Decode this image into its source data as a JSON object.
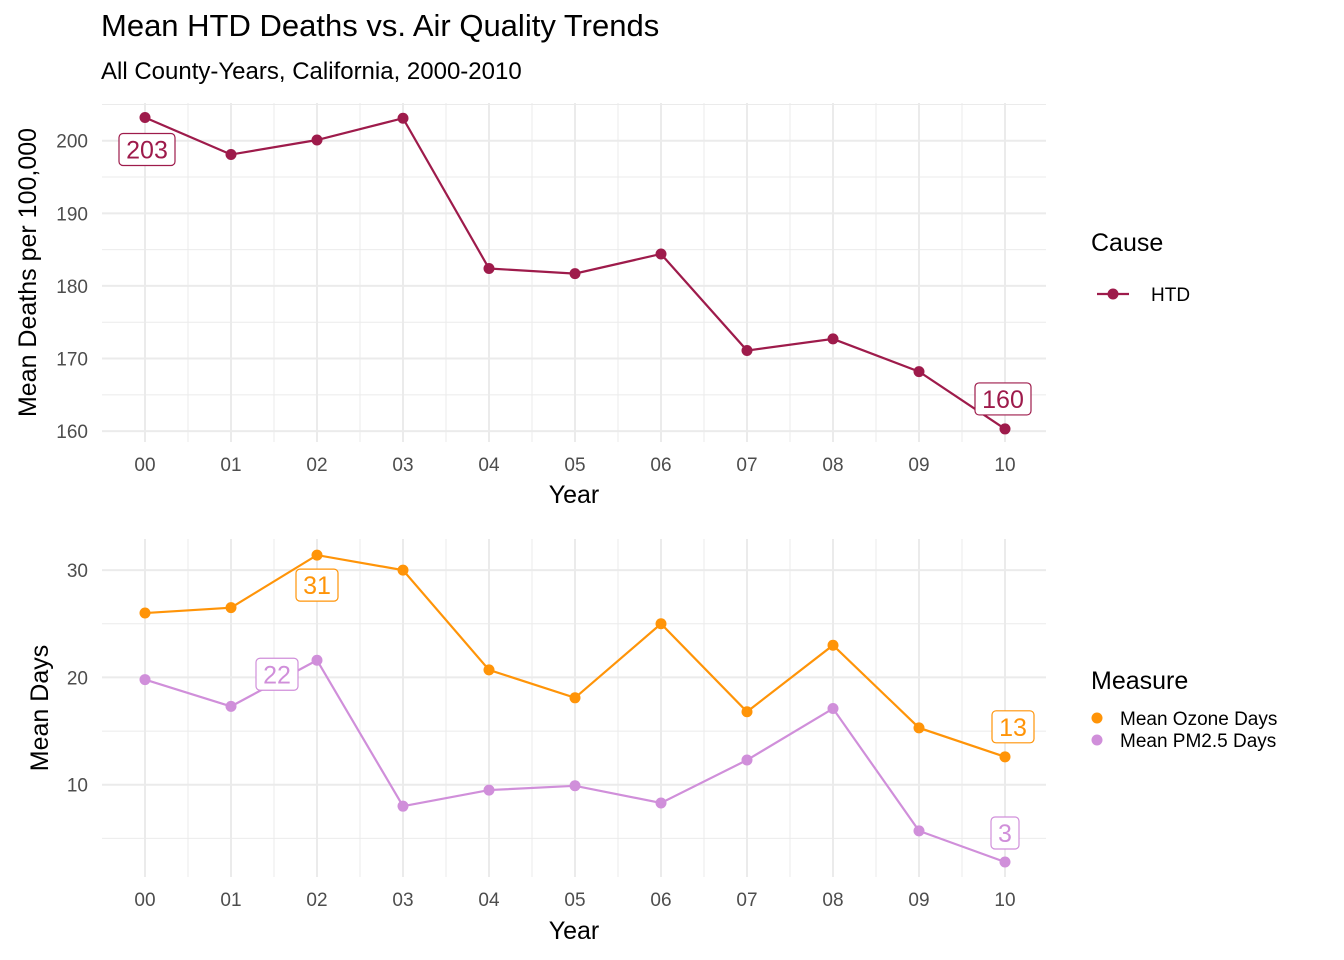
{
  "title": "Mean HTD Deaths vs. Air Quality Trends",
  "subtitle": "All County-Years, California, 2000-2010",
  "chart_data": [
    {
      "type": "line",
      "xlabel": "Year",
      "ylabel": "Mean Deaths per 100,000",
      "categories": [
        "00",
        "01",
        "02",
        "03",
        "04",
        "05",
        "06",
        "07",
        "08",
        "09",
        "10"
      ],
      "ylim": [
        158.5,
        205.2
      ],
      "yticks": [
        160,
        170,
        180,
        190,
        200
      ],
      "grid": true,
      "legend": {
        "title": "Cause",
        "position": "right"
      },
      "series": [
        {
          "name": "HTD",
          "color": "#9E1B4B",
          "values": [
            203.2,
            198.1,
            200.1,
            203.1,
            182.4,
            181.7,
            184.4,
            171.1,
            172.7,
            168.2,
            160.3
          ]
        }
      ],
      "annotations": [
        {
          "series": "HTD",
          "x": "00",
          "text": "203"
        },
        {
          "series": "HTD",
          "x": "10",
          "text": "160"
        }
      ]
    },
    {
      "type": "line",
      "xlabel": "Year",
      "ylabel": "Mean Days",
      "categories": [
        "00",
        "01",
        "02",
        "03",
        "04",
        "05",
        "06",
        "07",
        "08",
        "09",
        "10"
      ],
      "ylim": [
        1.4,
        32.9
      ],
      "yticks": [
        10,
        20,
        30
      ],
      "grid": true,
      "legend": {
        "title": "Measure",
        "position": "right"
      },
      "series": [
        {
          "name": "Mean Ozone Days",
          "color": "#FF9408",
          "values": [
            26.0,
            26.5,
            31.4,
            30.0,
            20.7,
            18.1,
            25.0,
            16.8,
            23.0,
            15.3,
            12.6
          ]
        },
        {
          "name": "Mean PM2.5 Days",
          "color": "#D08FDA",
          "values": [
            19.8,
            17.3,
            21.6,
            8.0,
            9.5,
            9.9,
            8.3,
            12.3,
            17.1,
            5.7,
            2.8
          ]
        }
      ],
      "annotations": [
        {
          "series": "Mean Ozone Days",
          "x": "02",
          "text": "31"
        },
        {
          "series": "Mean Ozone Days",
          "x": "10",
          "text": "13"
        },
        {
          "series": "Mean PM2.5 Days",
          "x": "02",
          "text": "22"
        },
        {
          "series": "Mean PM2.5 Days",
          "x": "10",
          "text": "3"
        }
      ]
    }
  ]
}
